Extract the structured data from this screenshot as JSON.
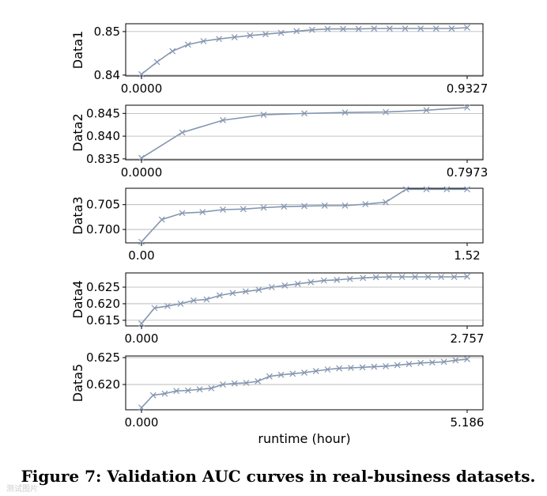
{
  "chart_data": [
    {
      "type": "line",
      "ylabel": "Data1",
      "x_start_label": "0.0000",
      "x_end_label": "0.9327",
      "ylim": [
        0.8398,
        0.8518
      ],
      "yticks": [
        0.84,
        0.85
      ],
      "ytick_labels": [
        "0.84",
        "0.85"
      ],
      "series": [
        {
          "name": "Data1",
          "values": [
            0.8402,
            0.843,
            0.8455,
            0.847,
            0.8478,
            0.8483,
            0.8487,
            0.8491,
            0.8494,
            0.8497,
            0.8501,
            0.8504,
            0.8506,
            0.8506,
            0.8506,
            0.8507,
            0.8507,
            0.8507,
            0.8507,
            0.8507,
            0.8507,
            0.8509
          ]
        }
      ]
    },
    {
      "type": "line",
      "ylabel": "Data2",
      "x_start_label": "0.0000",
      "x_end_label": "0.7973",
      "ylim": [
        0.8348,
        0.8468
      ],
      "yticks": [
        0.835,
        0.84,
        0.845
      ],
      "ytick_labels": [
        "0.835",
        "0.840",
        "0.845"
      ],
      "series": [
        {
          "name": "Data2",
          "values": [
            0.8352,
            0.8408,
            0.8435,
            0.8447,
            0.845,
            0.8452,
            0.8453,
            0.8457,
            0.8463
          ]
        }
      ]
    },
    {
      "type": "line",
      "ylabel": "Data3",
      "x_start_label": "0.00",
      "x_end_label": "1.52",
      "ylim": [
        0.6973,
        0.7083
      ],
      "yticks": [
        0.7,
        0.705
      ],
      "ytick_labels": [
        "0.700",
        "0.705"
      ],
      "series": [
        {
          "name": "Data3",
          "values": [
            0.6975,
            0.702,
            0.7033,
            0.7035,
            0.704,
            0.7041,
            0.7044,
            0.7046,
            0.7047,
            0.7048,
            0.7048,
            0.7051,
            0.7055,
            0.7081,
            0.7081,
            0.7081,
            0.7081
          ]
        }
      ]
    },
    {
      "type": "line",
      "ylabel": "Data4",
      "x_start_label": "0.000",
      "x_end_label": "2.757",
      "ylim": [
        0.6133,
        0.6293
      ],
      "yticks": [
        0.615,
        0.62,
        0.625
      ],
      "ytick_labels": [
        "0.615",
        "0.620",
        "0.625"
      ],
      "series": [
        {
          "name": "Data4",
          "values": [
            0.614,
            0.6187,
            0.6193,
            0.62,
            0.621,
            0.6213,
            0.6225,
            0.6232,
            0.6237,
            0.6242,
            0.625,
            0.6255,
            0.626,
            0.6265,
            0.627,
            0.6272,
            0.6275,
            0.6278,
            0.628,
            0.6281,
            0.6281,
            0.6281,
            0.6281,
            0.6281,
            0.6281,
            0.6282
          ]
        }
      ]
    },
    {
      "type": "line",
      "ylabel": "Data5",
      "x_start_label": "0.000",
      "x_end_label": "5.186",
      "ylim": [
        0.6153,
        0.6253
      ],
      "yticks": [
        0.62,
        0.625
      ],
      "ytick_labels": [
        "0.620",
        "0.625"
      ],
      "series": [
        {
          "name": "Data5",
          "values": [
            0.6157,
            0.618,
            0.6183,
            0.6188,
            0.6189,
            0.6191,
            0.6193,
            0.62,
            0.6202,
            0.6203,
            0.6206,
            0.6215,
            0.6218,
            0.622,
            0.6222,
            0.6225,
            0.6228,
            0.623,
            0.6231,
            0.6232,
            0.6233,
            0.6234,
            0.6236,
            0.6238,
            0.624,
            0.6241,
            0.6242,
            0.6245,
            0.6247
          ]
        }
      ]
    }
  ],
  "xlabel": "runtime (hour)",
  "caption": "Figure 7: Validation AUC curves in real-business datasets.",
  "watermark": "测试图片",
  "colors": {
    "series": "#8496b0",
    "grid": "#b0b0b0",
    "frame": "#000000"
  }
}
